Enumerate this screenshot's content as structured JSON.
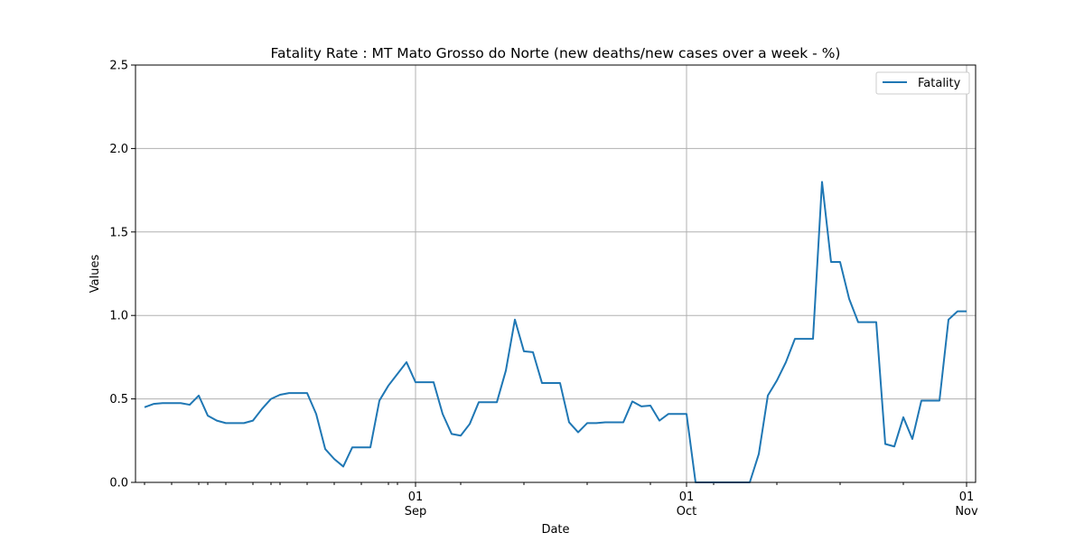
{
  "chart_data": {
    "type": "line",
    "title": "Fatality Rate : MT Mato Grosso do Norte (new deaths/new cases over a week - %)",
    "xlabel": "Date",
    "ylabel": "Values",
    "ylim": [
      0,
      2.5
    ],
    "xlim": [
      "2020-08-02",
      "2020-11-01"
    ],
    "yticks": [
      "0.0",
      "0.5",
      "1.0",
      "1.5",
      "2.0",
      "2.5"
    ],
    "xticks": [
      {
        "date": "2020-09-01",
        "day": "01",
        "month": "Sep"
      },
      {
        "date": "2020-10-01",
        "day": "01",
        "month": "Oct"
      },
      {
        "date": "2020-11-01",
        "day": "01",
        "month": "Nov"
      }
    ],
    "grid": true,
    "legend": "top-right",
    "series": [
      {
        "name": "Fatality",
        "color": "#1f77b4",
        "x": [
          "2020-08-02",
          "2020-08-03",
          "2020-08-04",
          "2020-08-05",
          "2020-08-06",
          "2020-08-07",
          "2020-08-08",
          "2020-08-09",
          "2020-08-10",
          "2020-08-11",
          "2020-08-12",
          "2020-08-13",
          "2020-08-14",
          "2020-08-15",
          "2020-08-16",
          "2020-08-17",
          "2020-08-18",
          "2020-08-19",
          "2020-08-20",
          "2020-08-21",
          "2020-08-22",
          "2020-08-23",
          "2020-08-24",
          "2020-08-25",
          "2020-08-26",
          "2020-08-27",
          "2020-08-28",
          "2020-08-29",
          "2020-08-30",
          "2020-08-31",
          "2020-09-01",
          "2020-09-02",
          "2020-09-03",
          "2020-09-04",
          "2020-09-05",
          "2020-09-06",
          "2020-09-07",
          "2020-09-08",
          "2020-09-09",
          "2020-09-10",
          "2020-09-11",
          "2020-09-12",
          "2020-09-13",
          "2020-09-14",
          "2020-09-15",
          "2020-09-16",
          "2020-09-17",
          "2020-09-18",
          "2020-09-19",
          "2020-09-20",
          "2020-09-21",
          "2020-09-22",
          "2020-09-23",
          "2020-09-24",
          "2020-09-25",
          "2020-09-26",
          "2020-09-27",
          "2020-09-28",
          "2020-09-29",
          "2020-09-30",
          "2020-10-01",
          "2020-10-02",
          "2020-10-03",
          "2020-10-04",
          "2020-10-05",
          "2020-10-06",
          "2020-10-07",
          "2020-10-08",
          "2020-10-09",
          "2020-10-10",
          "2020-10-11",
          "2020-10-12",
          "2020-10-13",
          "2020-10-14",
          "2020-10-15",
          "2020-10-16",
          "2020-10-17",
          "2020-10-18",
          "2020-10-19",
          "2020-10-20",
          "2020-10-21",
          "2020-10-22",
          "2020-10-23",
          "2020-10-24",
          "2020-10-25",
          "2020-10-26",
          "2020-10-27",
          "2020-10-28",
          "2020-10-29",
          "2020-10-30",
          "2020-10-31",
          "2020-11-01"
        ],
        "values": [
          0.45,
          0.47,
          0.475,
          0.475,
          0.475,
          0.465,
          0.52,
          0.4,
          0.37,
          0.355,
          0.355,
          0.355,
          0.37,
          0.44,
          0.5,
          0.525,
          0.535,
          0.535,
          0.535,
          0.41,
          0.2,
          0.14,
          0.095,
          0.21,
          0.21,
          0.21,
          0.49,
          0.58,
          0.65,
          0.72,
          0.6,
          0.6,
          0.6,
          0.41,
          0.29,
          0.28,
          0.35,
          0.48,
          0.48,
          0.48,
          0.67,
          0.975,
          0.785,
          0.78,
          0.595,
          0.595,
          0.595,
          0.36,
          0.3,
          0.355,
          0.355,
          0.36,
          0.36,
          0.36,
          0.485,
          0.455,
          0.46,
          0.37,
          0.41,
          0.41,
          0.41,
          0.0,
          0.0,
          0.0,
          0.0,
          0.0,
          0.0,
          0.0,
          0.17,
          0.52,
          0.61,
          0.72,
          0.86,
          0.86,
          0.86,
          1.8,
          1.32,
          1.32,
          1.1,
          0.96,
          0.96,
          0.96,
          0.23,
          0.215,
          0.39,
          0.26,
          0.49,
          0.49,
          0.49,
          0.975,
          1.025,
          1.025
        ]
      }
    ]
  }
}
